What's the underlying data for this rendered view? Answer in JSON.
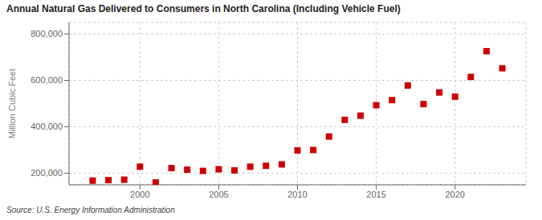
{
  "chart_data": {
    "type": "scatter",
    "title": "Annual Natural Gas Delivered to Consumers in North Carolina (Including Vehicle Fuel)",
    "ylabel": "Million Cubic Feet",
    "annotations": [
      "Source: U.S. Energy Information Administration"
    ],
    "x": [
      1997,
      1998,
      1999,
      2000,
      2001,
      2002,
      2003,
      2004,
      2005,
      2006,
      2007,
      2008,
      2009,
      2010,
      2011,
      2012,
      2013,
      2014,
      2015,
      2016,
      2017,
      2018,
      2019,
      2020,
      2021,
      2022,
      2023
    ],
    "values": [
      168000,
      170000,
      172000,
      228000,
      160000,
      222000,
      215000,
      210000,
      217000,
      212000,
      228000,
      232000,
      238000,
      298000,
      300000,
      358000,
      430000,
      448000,
      493000,
      515000,
      578000,
      498000,
      548000,
      530000,
      615000,
      726000,
      652000
    ],
    "color": "#cc0000",
    "marker": "square",
    "grid": true,
    "xlim": [
      1995.5,
      2024.5
    ],
    "xticks": [
      2000,
      2005,
      2010,
      2015,
      2020
    ],
    "ylim": [
      150000,
      850000
    ],
    "yticks": [
      {
        "value": 200000,
        "label": "200,000"
      },
      {
        "value": 400000,
        "label": "400,000"
      },
      {
        "value": 600000,
        "label": "600,000"
      },
      {
        "value": 800000,
        "label": "800,000"
      }
    ]
  }
}
